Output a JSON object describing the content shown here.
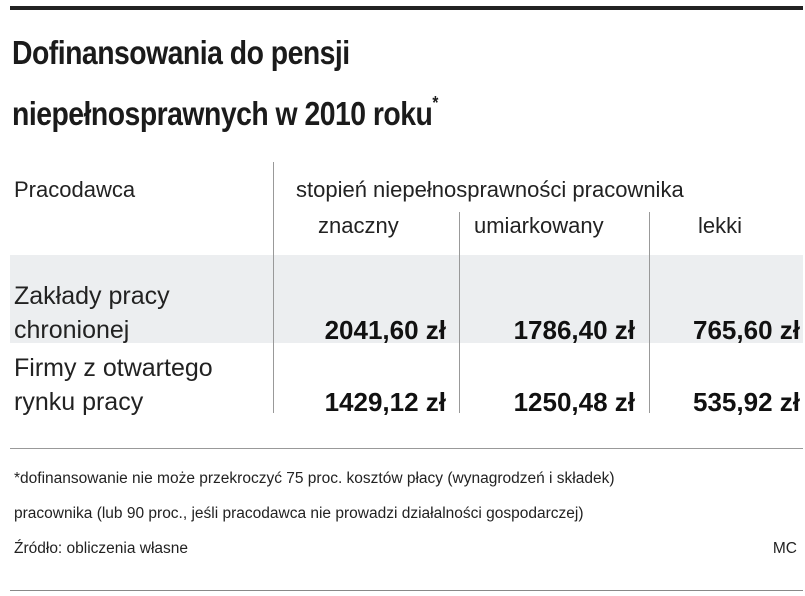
{
  "title": {
    "line1": "Dofinansowania do pensji",
    "line2": "niepełnosprawnych w 2010 roku",
    "marker": "*"
  },
  "table": {
    "employer_header": "Pracodawca",
    "group_header": "stopień niepełnosprawności pracownika",
    "columns": [
      "znaczny",
      "umiarkowany",
      "lekki"
    ],
    "rows": [
      {
        "label_line1": "Zakłady pracy",
        "label_line2": "chronionej",
        "values": [
          "2041,60 zł",
          "1786,40 zł",
          "765,60 zł"
        ]
      },
      {
        "label_line1": "Firmy z otwartego",
        "label_line2": "rynku pracy",
        "values": [
          "1429,12 zł",
          "1250,48 zł",
          "535,92 zł"
        ]
      }
    ]
  },
  "footnote": {
    "line1": "*dofinansowanie nie może przekroczyć 75 proc. kosztów płacy (wynagrodzeń i składek)",
    "line2": "pracownika (lub 90 proc., jeśli pracodawca nie prowadzi działalności gospodarczej)",
    "source": "Źródło: obliczenia własne",
    "author": "MC"
  }
}
